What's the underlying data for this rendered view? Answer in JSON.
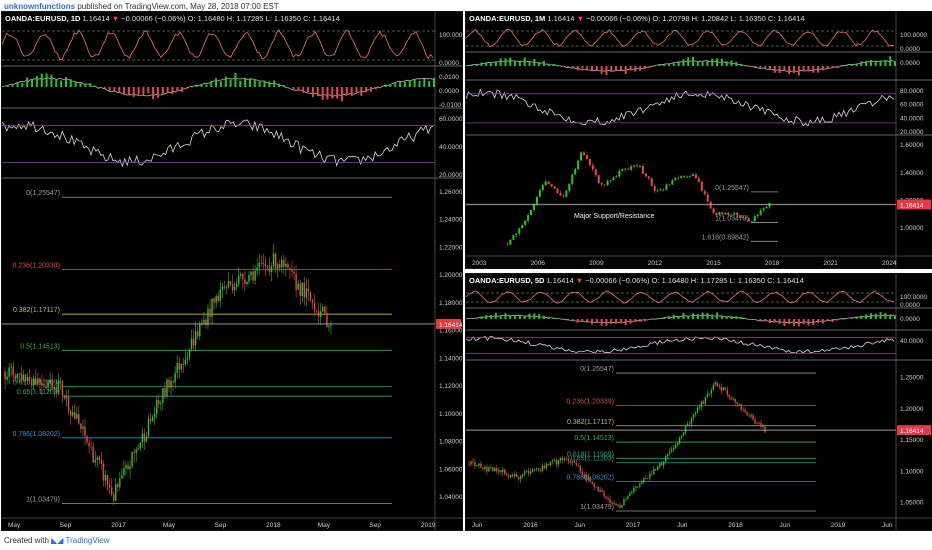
{
  "header": {
    "user": "unknownfunctions",
    "published": " published on TradingView.com, May 28, 2018 07:00 EST"
  },
  "footer": {
    "created": "Created with",
    "brand": "TradingView"
  },
  "panels": {
    "daily": {
      "symbol": "OANDA:EURUSD, 1D",
      "last": "1.16414",
      "change": "−0.00066 (−0.06%)",
      "ohlc": "O: 1.16480  H: 1.17285  L: 1.16350  C: 1.16414",
      "indicator_ticks": {
        "stoch": [
          "100.0000",
          "0.0000"
        ],
        "macd": [
          "0.0100",
          "0.0000",
          "-0.0100"
        ],
        "rsi": [
          "60.0000",
          "40.0000",
          "20.0000"
        ]
      },
      "price_ticks": [
        "1.26000",
        "1.24000",
        "1.22000",
        "1.20000",
        "1.18000",
        "1.16000",
        "1.14000",
        "1.12000",
        "1.10000",
        "1.08000",
        "1.06000",
        "1.04000"
      ],
      "price_label": "1.16414",
      "time_ticks": [
        "May",
        "Sep",
        "2017",
        "May",
        "Sep",
        "2018",
        "May",
        "Sep",
        "2019"
      ]
    },
    "monthly": {
      "symbol": "OANDA:EURUSD, 1M",
      "last": "1.16414",
      "change": "−0.00066 (−0.06%)",
      "ohlc": "O: 1.20798  H: 1.20842  L: 1.16350  C: 1.16414",
      "indicator_ticks": {
        "stoch": [
          "100.0000",
          "0.0000"
        ],
        "macd": [
          "0.0000"
        ],
        "rsi": [
          "80.0000",
          "60.0000",
          "40.0000",
          "20.0000"
        ]
      },
      "price_ticks": [
        "1.60000",
        "1.40000",
        "1.20000",
        "1.00000"
      ],
      "price_label": "1.16414",
      "annotation": "Major Support/Resistance",
      "time_ticks": [
        "2003",
        "2006",
        "2009",
        "2012",
        "2015",
        "2018",
        "2021",
        "2024"
      ]
    },
    "fiveday": {
      "symbol": "OANDA:EURUSD, 5D",
      "last": "1.16414",
      "change": "−0.00066 (−0.06%)",
      "ohlc": "O: 1.16480  H: 1.17285  L: 1.16350  C: 1.16414",
      "indicator_ticks": {
        "stoch": [
          "100.0000",
          "0.0000"
        ],
        "macd": [
          "0.0000"
        ],
        "rsi": [
          "40.0000"
        ]
      },
      "price_ticks": [
        "1.25000",
        "1.20000",
        "1.15000",
        "1.10000",
        "1.05000"
      ],
      "price_label": "1.16414",
      "time_ticks": [
        "Jun",
        "2016",
        "Jun",
        "2017",
        "Jun",
        "2018",
        "Jun",
        "2019",
        "Jun"
      ]
    }
  },
  "colors": {
    "background": "#000000",
    "up": "#2fbf2f",
    "down": "#e04a4a",
    "price_label": "#e53946"
  },
  "chart_data": [
    {
      "type": "line",
      "title": "OANDA:EURUSD, 1D",
      "x": [
        "2016-05",
        "2016-09",
        "2017-01",
        "2017-05",
        "2017-09",
        "2018-01",
        "2018-05"
      ],
      "y": [
        1.13,
        1.12,
        1.04,
        1.12,
        1.19,
        1.21,
        1.164
      ],
      "ylim": [
        1.03,
        1.265
      ],
      "fibonacci": [
        {
          "label": "0(1.25547)",
          "value": 1.25547,
          "color": "#9a9a9a"
        },
        {
          "label": "0.236(1.20339)",
          "value": 1.20339,
          "color": "#e04a4a"
        },
        {
          "label": "0.382(1.17117)",
          "value": 1.17117,
          "color": "#c8b850"
        },
        {
          "label": "0.5(1.14513)",
          "value": 1.14513,
          "color": "#3fae4a"
        },
        {
          "label": "0.618(1.11909)",
          "value": 1.11909,
          "color": "#2ca089"
        },
        {
          "label": "0.65(1.11203)",
          "value": 1.11203,
          "color": "#2ca089"
        },
        {
          "label": "0.786(1.08202)",
          "value": 1.08202,
          "color": "#3a8ec8"
        },
        {
          "label": "1(1.03479)",
          "value": 1.03479,
          "color": "#9a9a9a"
        }
      ]
    },
    {
      "type": "line",
      "title": "OANDA:EURUSD, 1M",
      "x": [
        2001,
        2003,
        2005,
        2006,
        2008,
        2009,
        2010,
        2011,
        2012,
        2013,
        2014,
        2015,
        2016,
        2017,
        2018
      ],
      "y": [
        0.88,
        1.05,
        1.34,
        1.22,
        1.55,
        1.3,
        1.4,
        1.45,
        1.25,
        1.35,
        1.38,
        1.1,
        1.1,
        1.05,
        1.164
      ],
      "ylim": [
        0.85,
        1.63
      ],
      "fibonacci": [
        {
          "label": "0(1.25547)",
          "value": 1.25547
        },
        {
          "label": "1(1.03479)",
          "value": 1.03479
        },
        {
          "label": "1.618(0.89842)",
          "value": 0.89842
        }
      ]
    },
    {
      "type": "line",
      "title": "OANDA:EURUSD, 5D",
      "x": [
        "2015-06",
        "2016-01",
        "2016-06",
        "2017-01",
        "2017-06",
        "2018-01",
        "2018-05"
      ],
      "y": [
        1.11,
        1.09,
        1.12,
        1.04,
        1.12,
        1.24,
        1.164
      ],
      "ylim": [
        1.03,
        1.27
      ],
      "fibonacci": [
        {
          "label": "0(1.25547)",
          "value": 1.25547,
          "color": "#9a9a9a"
        },
        {
          "label": "0.236(1.20339)",
          "value": 1.20339,
          "color": "#e04a4a"
        },
        {
          "label": "0.382(1.17117)",
          "value": 1.17117,
          "color": "#c8b850"
        },
        {
          "label": "0.5(1.14513)",
          "value": 1.14513,
          "color": "#3fae4a"
        },
        {
          "label": "0.618(1.11909)",
          "value": 1.11909,
          "color": "#2ca089"
        },
        {
          "label": "0.65(1.11203)",
          "value": 1.11203,
          "color": "#2ca089"
        },
        {
          "label": "0.786(1.08202)",
          "value": 1.08202,
          "color": "#3a8ec8"
        },
        {
          "label": "1(1.03479)",
          "value": 1.03479,
          "color": "#9a9a9a"
        }
      ]
    }
  ]
}
